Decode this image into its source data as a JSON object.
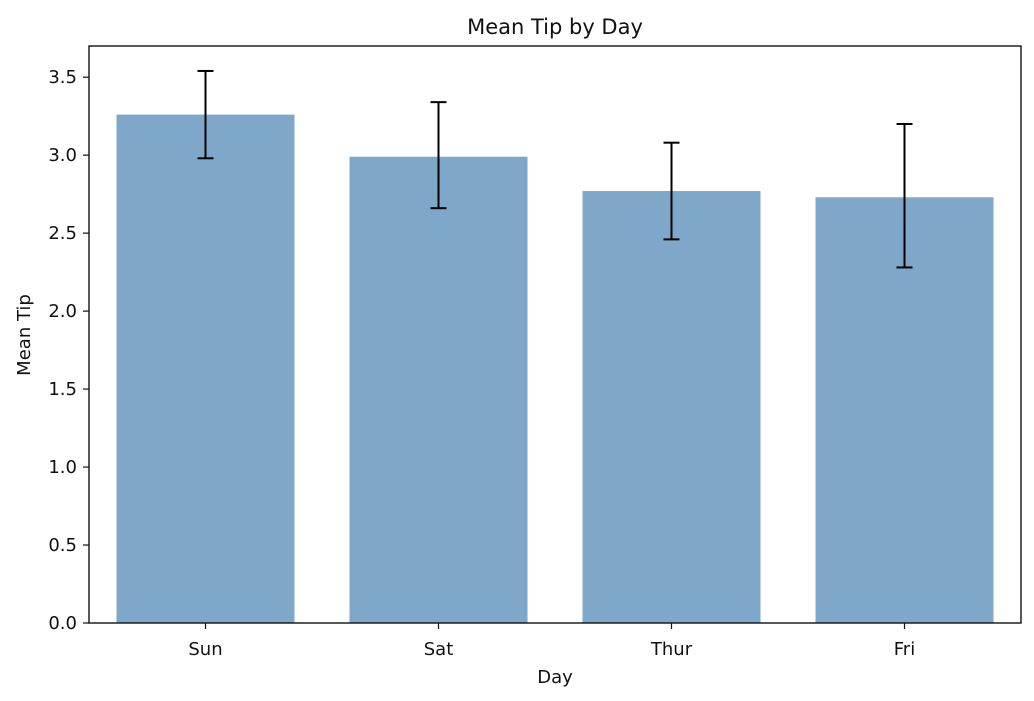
{
  "chart_data": {
    "type": "bar",
    "title": "Mean Tip by Day",
    "xlabel": "Day",
    "ylabel": "Mean Tip",
    "categories": [
      "Sun",
      "Sat",
      "Thur",
      "Fri"
    ],
    "values": [
      3.26,
      2.99,
      2.77,
      2.73
    ],
    "error_low": [
      2.98,
      2.66,
      2.46,
      2.28
    ],
    "error_high": [
      3.54,
      3.34,
      3.08,
      3.2
    ],
    "ylim": [
      0,
      3.7
    ],
    "yticks": [
      "0.0",
      "0.5",
      "1.0",
      "1.5",
      "2.0",
      "2.5",
      "3.0",
      "3.5"
    ],
    "ytick_values": [
      0,
      0.5,
      1.0,
      1.5,
      2.0,
      2.5,
      3.0,
      3.5
    ],
    "grid": false,
    "bar_color": "#7ea7ca",
    "error_color": "#000000"
  }
}
